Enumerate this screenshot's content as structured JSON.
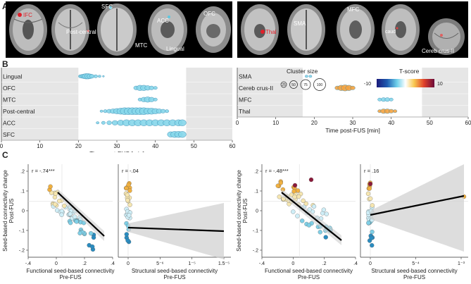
{
  "panels": {
    "A": "A",
    "B": "B",
    "C": "C"
  },
  "brain_labels_left": [
    "IFC",
    "Post-central",
    "SFC",
    "ACC",
    "OFC",
    "MTC",
    "Lingual"
  ],
  "brain_labels_right": [
    "Thal",
    "SMA",
    "MFC",
    "caud",
    "Cereb crus-II"
  ],
  "legend": {
    "size_title": "Cluster size",
    "sizes": [
      "25",
      "50",
      "75",
      "100"
    ],
    "tscore_title": "T-score",
    "tmin": "-10",
    "tmax": "10"
  },
  "colors": {
    "cyan": "#7fd3e8",
    "cyan_dark": "#2b8fc0",
    "orange": "#f2a33a",
    "red_dark": "#8b1a3a",
    "shade": "#e6e6e6"
  },
  "chart_data": [
    {
      "type": "scatter",
      "panel": "B-left",
      "categories": [
        "Lingual",
        "OFC",
        "MTC",
        "Post-central",
        "ACC",
        "SFC"
      ],
      "xlabel": "Time post-FUS [min]",
      "xlim": [
        0,
        60
      ],
      "xticks": [
        "0",
        "10",
        "20",
        "30",
        "40",
        "50",
        "60"
      ],
      "shaded": [
        [
          0,
          20
        ],
        [
          48,
          60
        ]
      ],
      "series": [
        {
          "row": "Lingual",
          "x": [
            20.5,
            21,
            21.5,
            22,
            22.5,
            23,
            23.5,
            24.5,
            25.5,
            26.5
          ],
          "sizes": [
            4,
            5,
            6,
            7,
            7,
            6,
            5,
            4,
            3,
            2
          ]
        },
        {
          "row": "OFC",
          "x": [
            35,
            36,
            37,
            38,
            39,
            40
          ],
          "sizes": [
            5,
            7,
            7,
            6,
            5,
            4
          ]
        },
        {
          "row": "MTC",
          "x": [
            36,
            37,
            38,
            39,
            40
          ],
          "sizes": [
            4,
            6,
            7,
            6,
            4
          ]
        },
        {
          "row": "Post-central",
          "x": [
            26,
            27,
            28,
            29,
            30,
            31,
            32,
            33,
            34,
            35,
            36,
            37,
            38,
            39,
            40,
            41,
            42,
            43
          ],
          "sizes": [
            3,
            4,
            5,
            6,
            7,
            8,
            9,
            9,
            9,
            9,
            9,
            9,
            8,
            8,
            7,
            6,
            5,
            4
          ]
        },
        {
          "row": "ACC",
          "x": [
            25,
            26.5,
            28,
            29.5,
            31,
            32.5,
            34,
            35.5,
            37,
            38.5,
            40,
            41.5,
            43,
            44.5,
            46,
            47
          ],
          "sizes": [
            3,
            4,
            5,
            6,
            7,
            8,
            8,
            8,
            8,
            8,
            8,
            8,
            8,
            8,
            8,
            8
          ]
        },
        {
          "row": "SFC",
          "x": [
            44,
            45,
            46,
            47
          ],
          "sizes": [
            7,
            8,
            8,
            8
          ]
        }
      ]
    },
    {
      "type": "scatter",
      "panel": "B-right",
      "categories": [
        "SMA",
        "Cereb crus-II",
        "MFC",
        "Thal"
      ],
      "xlabel": "Time post-FUS [min]",
      "xlim": [
        0,
        60
      ],
      "xticks": [
        "0",
        "10",
        "20",
        "30",
        "40",
        "50",
        "60"
      ],
      "shaded": [
        [
          0,
          17
        ],
        [
          48,
          60
        ]
      ],
      "series": [
        {
          "row": "SMA",
          "x": [
            18,
            19
          ],
          "sizes": [
            3,
            3
          ]
        },
        {
          "row": "Cereb crus-II",
          "x": [
            26,
            27,
            28,
            29,
            30
          ],
          "sizes": [
            5,
            7,
            8,
            7,
            5
          ]
        },
        {
          "row": "MFC",
          "x": [
            37,
            38,
            39,
            40
          ],
          "sizes": [
            4,
            5,
            5,
            4
          ]
        },
        {
          "row": "Thal",
          "x": [
            37,
            38,
            39,
            40,
            41
          ],
          "sizes": [
            4,
            6,
            6,
            5,
            4
          ]
        }
      ]
    },
    {
      "type": "scatter",
      "panel": "C-1",
      "annotation": "r = -.74***",
      "ylabel": "Seed-based connectivity change\nPost-FUS",
      "xlabel": "Functional seed-based connectivity\nPre-FUS",
      "xticks": [
        "-.4",
        "0",
        ".2",
        ".4"
      ],
      "yticks": [
        "-.2",
        "-.1",
        "0",
        ".1",
        ".2"
      ],
      "xlim": [
        -0.4,
        0.4
      ],
      "ylim": [
        -0.35,
        0.22
      ],
      "fit": [
        [
          -0.1,
          0.03
        ],
        [
          0.25,
          -0.32
        ]
      ]
    },
    {
      "type": "scatter",
      "panel": "C-2",
      "annotation": "r = -.04",
      "xlabel": "Structural seed-based connectivity\nPre-FUS",
      "xticks": [
        "0",
        "5⁻⁶",
        "1⁻⁵",
        "1.5⁻⁵"
      ],
      "fit": [
        [
          0,
          -0.12
        ],
        [
          1.5,
          -0.125
        ]
      ]
    },
    {
      "type": "scatter",
      "panel": "C-3",
      "annotation": "r = -.48***",
      "ylabel": "Seed-based connectivity change\nPost-FUS",
      "xlabel": "Functional seed-based connectivity\nPre-FUS",
      "xticks": [
        "-.4",
        "0",
        ".2",
        ".4"
      ],
      "yticks": [
        "-.2",
        "-.1",
        "0",
        ".1",
        ".2"
      ],
      "fit": [
        [
          -0.15,
          0.15
        ],
        [
          0.3,
          -0.22
        ]
      ]
    },
    {
      "type": "scatter",
      "panel": "C-4",
      "annotation": "r = .16",
      "xlabel": "Structural seed-based connectivity\nPre-FUS",
      "xticks": [
        "0",
        "5⁻⁴",
        "1⁻³"
      ],
      "fit": [
        [
          0,
          0.01
        ],
        [
          1.2,
          0.12
        ]
      ]
    }
  ]
}
